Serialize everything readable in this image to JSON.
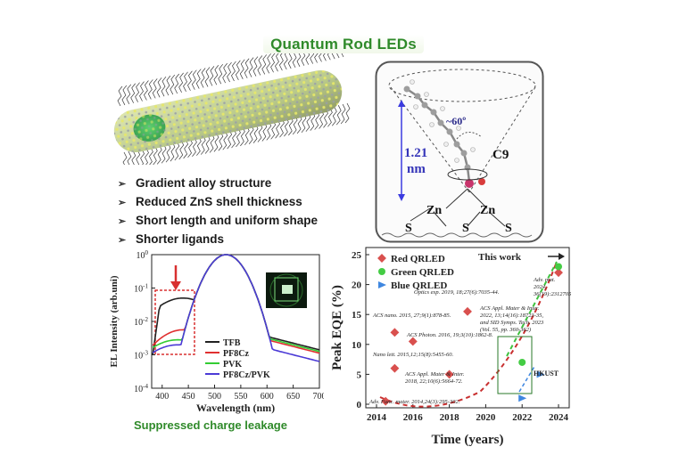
{
  "title": "Quantum Rod LEDs",
  "bullets": [
    "Gradient alloy structure",
    "Reduced ZnS shell thickness",
    "Short length and uniform shape",
    "Shorter ligands"
  ],
  "ligand_inset": {
    "angle": "~60º",
    "length_value": "1.21",
    "length_unit": "nm",
    "chain": "C9",
    "atoms": [
      "Zn",
      "Zn",
      "S",
      "S",
      "S"
    ]
  },
  "el_spectrum": {
    "type": "line",
    "ylabel": "EL Intensity (arb.uni)",
    "xlabel": "Wavelength (nm)",
    "xlim": [
      380,
      700
    ],
    "x_ticks": [
      "400",
      "450",
      "500",
      "550",
      "600",
      "650",
      "700"
    ],
    "y_ticks": [
      "10-4",
      "10-3",
      "10-2",
      "10-1",
      "100"
    ],
    "y_log": true,
    "legend": [
      "TFB",
      "PF8Cz",
      "PVK",
      "PF8Cz/PVK"
    ],
    "colors": [
      "#222222",
      "#e03030",
      "#33cc33",
      "#4b3ad6"
    ]
  },
  "chart_data": {
    "type": "scatter",
    "ylabel": "Peak EQE (%)",
    "xlabel": "Time (years)",
    "xlim": [
      2014,
      2024
    ],
    "ylim": [
      0,
      25
    ],
    "x_ticks": [
      "2014",
      "2016",
      "2018",
      "2020",
      "2022",
      "2024"
    ],
    "y_ticks": [
      "0",
      "5",
      "10",
      "15",
      "20",
      "25"
    ],
    "legend": [
      "Red QRLED",
      "Green QRLED",
      "Blue QRLED"
    ],
    "colors": {
      "red": "#d9504e",
      "green": "#44cc44",
      "blue": "#3f87e0"
    },
    "series": [
      {
        "name": "Red QRLED",
        "points": [
          [
            2014.5,
            0.5
          ],
          [
            2015,
            12
          ],
          [
            2015,
            6
          ],
          [
            2016,
            10.5
          ],
          [
            2018,
            5
          ],
          [
            2019,
            15.5
          ],
          [
            2024,
            22
          ]
        ]
      },
      {
        "name": "Green QRLED",
        "points": [
          [
            2022,
            7
          ],
          [
            2024,
            23
          ]
        ]
      },
      {
        "name": "Blue QRLED",
        "points": [
          [
            2022,
            1
          ],
          [
            2023,
            5
          ]
        ]
      }
    ],
    "annotations": [
      "This work",
      "Optics exp. 2019, 18;27(6):7035-44.",
      "ACS nano. 2015, 27;9(1):878-85.",
      "ACS Photon. 2016, 19;3(10):1862-8.",
      "Nano lett. 2015,12;15(8):5455-60.",
      "ACS Appl. Mater & Inter. 2018, 22;10(6):5664-72.",
      "Adv. Func. mater. 2014,24(3):295-302.",
      "ACS Appl. Mater & Inter. 2022, 13;14(16):18723-35, and SID Symps. Tech. 2023 (Vol. 55, pp. 360-362)",
      "Adv. mat. 2024, 36(19):2312705",
      "HKUST"
    ]
  },
  "caption": "Suppressed charge leakage"
}
